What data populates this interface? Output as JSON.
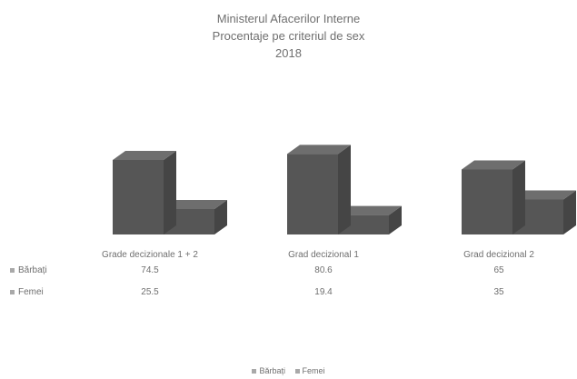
{
  "chart_data": {
    "type": "bar",
    "title": "Ministerul Afacerilor Interne",
    "subtitle": "Procentaje pe criteriul de sex",
    "year": "2018",
    "categories": [
      "Grade decizionale 1 + 2",
      "Grad decizional 1",
      "Grad decizional 2"
    ],
    "series": [
      {
        "name": "Bărbați",
        "values": [
          74.5,
          80.6,
          65
        ],
        "labels": [
          "74.5",
          "80.6",
          "65"
        ]
      },
      {
        "name": "Femei",
        "values": [
          25.5,
          19.4,
          35
        ],
        "labels": [
          "25.5",
          "19.4",
          "35"
        ]
      }
    ],
    "ylim": [
      0,
      100
    ],
    "style": "3d-column",
    "data_table": true,
    "legend_position": "bottom",
    "colors": {
      "front": "#565656",
      "top": "#6e6e6e",
      "side": "#454545",
      "legend_swatch": "#a9a9a9"
    }
  }
}
